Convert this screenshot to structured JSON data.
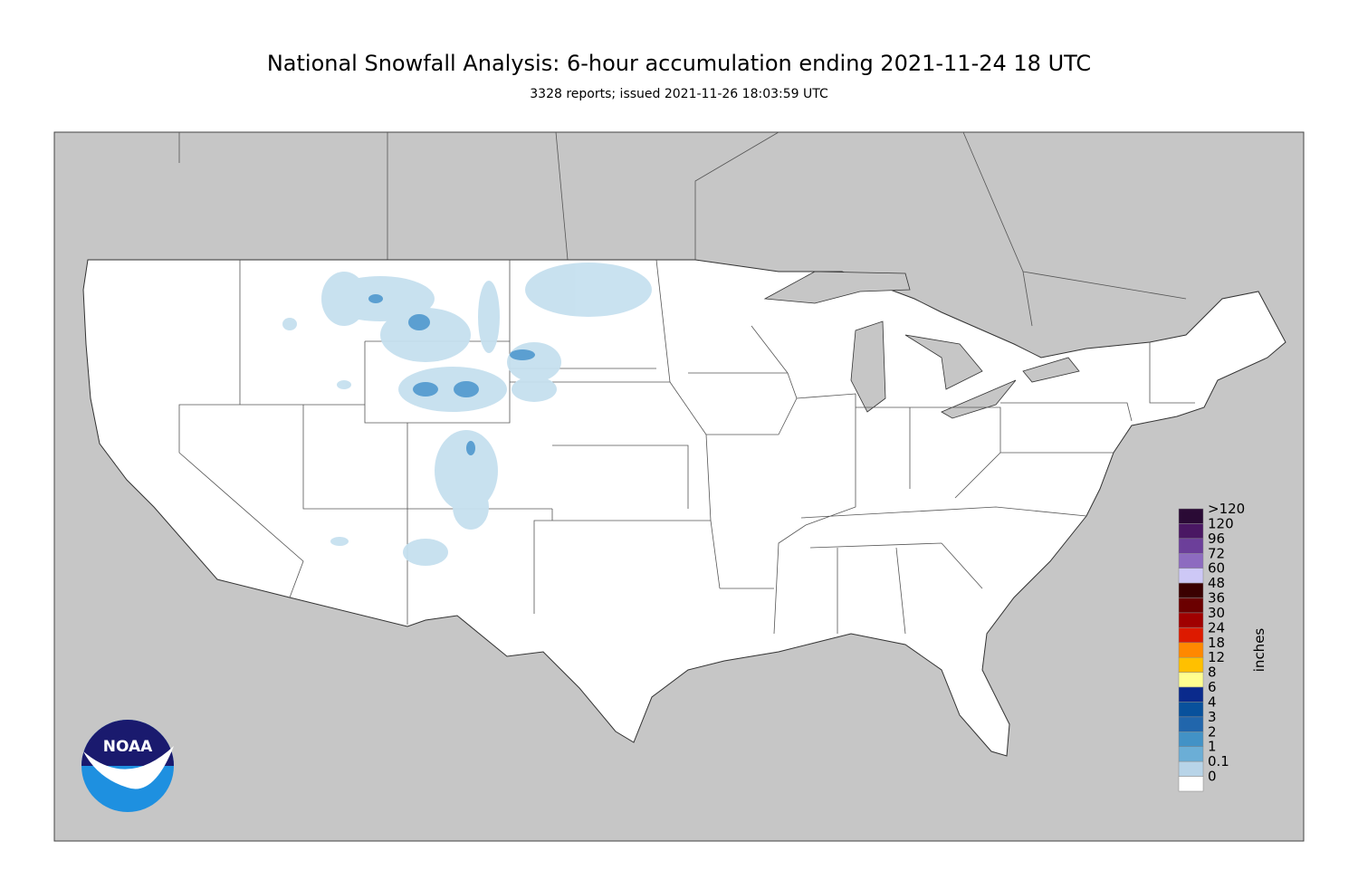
{
  "header": {
    "title": "National Snowfall Analysis: 6-hour accumulation ending 2021-11-24 18 UTC",
    "subtitle": "3328 reports; issued 2021-11-26 18:03:59 UTC"
  },
  "logo": {
    "text": "NOAA"
  },
  "colorbar": {
    "units": "inches",
    "labels": [
      ">120",
      "120",
      "96",
      "72",
      "60",
      "48",
      "36",
      "30",
      "24",
      "18",
      "12",
      "8",
      "6",
      "4",
      "3",
      "2",
      "1",
      "0.1",
      "0"
    ],
    "colors": [
      "#2a0a35",
      "#4a1763",
      "#6c3f9a",
      "#8d6bc0",
      "#cdc8f6",
      "#3a0000",
      "#6b0000",
      "#a00000",
      "#dd1a00",
      "#ff8800",
      "#ffc000",
      "#ffff8f",
      "#0a2a8c",
      "#08519c",
      "#2166ac",
      "#4292c6",
      "#6baed6",
      "#b8d4e8",
      "#ffffff"
    ]
  }
}
